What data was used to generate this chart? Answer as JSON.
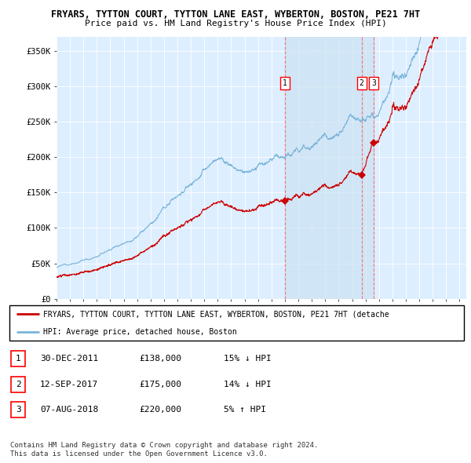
{
  "title1": "FRYARS, TYTTON COURT, TYTTON LANE EAST, WYBERTON, BOSTON, PE21 7HT",
  "title2": "Price paid vs. HM Land Registry's House Price Index (HPI)",
  "ylabel_ticks": [
    "£0",
    "£50K",
    "£100K",
    "£150K",
    "£200K",
    "£250K",
    "£300K",
    "£350K"
  ],
  "ytick_values": [
    0,
    50000,
    100000,
    150000,
    200000,
    250000,
    300000,
    350000
  ],
  "ylim": [
    0,
    370000
  ],
  "xlim_start": 1995.0,
  "xlim_end": 2025.5,
  "hpi_color": "#7ab4d8",
  "price_color": "#cc0000",
  "background_color": "#ddeeff",
  "shade_color": "#c8dff0",
  "sale1_x": 2011.99,
  "sale1_y": 138000,
  "sale2_x": 2017.71,
  "sale2_y": 175000,
  "sale3_x": 2018.6,
  "sale3_y": 220000,
  "legend_label_red": "FRYARS, TYTTON COURT, TYTTON LANE EAST, WYBERTON, BOSTON, PE21 7HT (detache",
  "legend_label_blue": "HPI: Average price, detached house, Boston",
  "table_rows": [
    [
      "1",
      "30-DEC-2011",
      "£138,000",
      "15% ↓ HPI"
    ],
    [
      "2",
      "12-SEP-2017",
      "£175,000",
      "14% ↓ HPI"
    ],
    [
      "3",
      "07-AUG-2018",
      "£220,000",
      "5% ↑ HPI"
    ]
  ],
  "footnote1": "Contains HM Land Registry data © Crown copyright and database right 2024.",
  "footnote2": "This data is licensed under the Open Government Licence v3.0."
}
